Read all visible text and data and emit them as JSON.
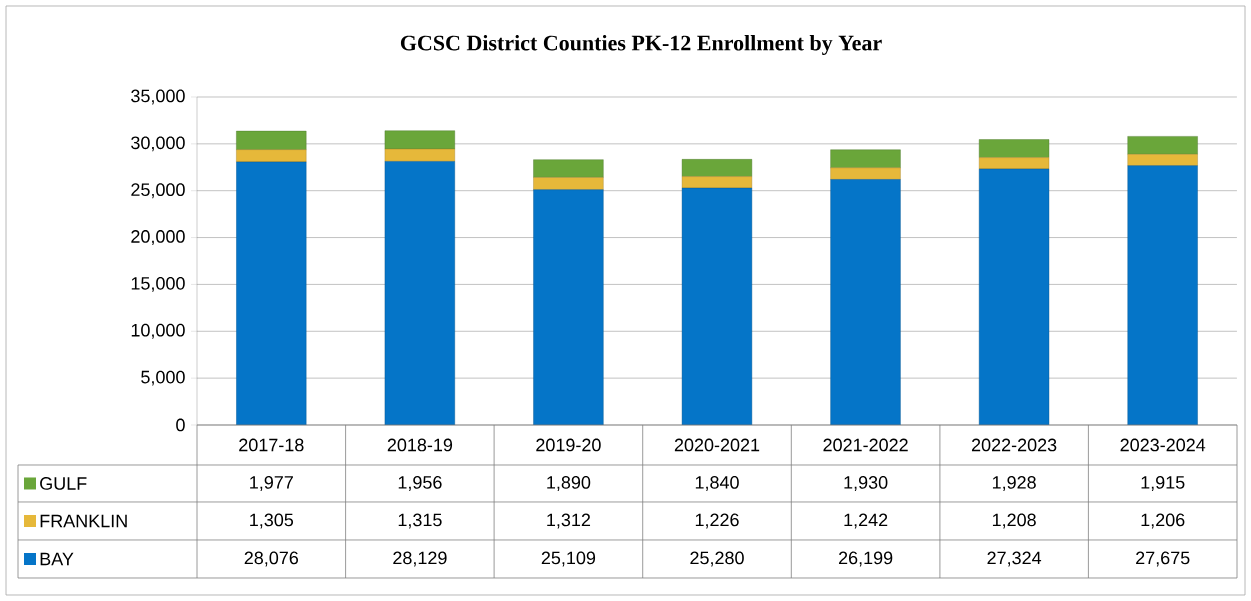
{
  "chart_data": {
    "type": "bar",
    "title": "GCSC District Counties PK-12 Enrollment by Year",
    "stacked": true,
    "categories": [
      "2017-18",
      "2018-19",
      "2019-20",
      "2020-2021",
      "2021-2022",
      "2022-2023",
      "2023-2024"
    ],
    "series": [
      {
        "name": "BAY",
        "color": "#0575c8",
        "values": [
          28076,
          28129,
          25109,
          25280,
          26199,
          27324,
          27675
        ],
        "value_labels": [
          "28,076",
          "28,129",
          "25,109",
          "25,280",
          "26,199",
          "27,324",
          "27,675"
        ]
      },
      {
        "name": "FRANKLIN",
        "color": "#e6b83a",
        "values": [
          1305,
          1315,
          1312,
          1226,
          1242,
          1208,
          1206
        ],
        "value_labels": [
          "1,305",
          "1,315",
          "1,312",
          "1,226",
          "1,242",
          "1,208",
          "1,206"
        ]
      },
      {
        "name": "GULF",
        "color": "#6aa63a",
        "values": [
          1977,
          1956,
          1890,
          1840,
          1930,
          1928,
          1915
        ],
        "value_labels": [
          "1,977",
          "1,956",
          "1,890",
          "1,840",
          "1,930",
          "1,928",
          "1,915"
        ]
      }
    ],
    "ylim": [
      0,
      35000
    ],
    "yticks": [
      0,
      {
        "value": 5000,
        "label": "5,000"
      },
      {
        "value": 10000,
        "label": "10,000"
      },
      {
        "value": 15000,
        "label": "15,000"
      },
      {
        "value": 20000,
        "label": "20,000"
      },
      {
        "value": 25000,
        "label": "25,000"
      },
      {
        "value": 30000,
        "label": "30,000"
      },
      {
        "value": 35000,
        "label": "35,000"
      }
    ],
    "grid": "y",
    "legend": "bottom left"
  }
}
